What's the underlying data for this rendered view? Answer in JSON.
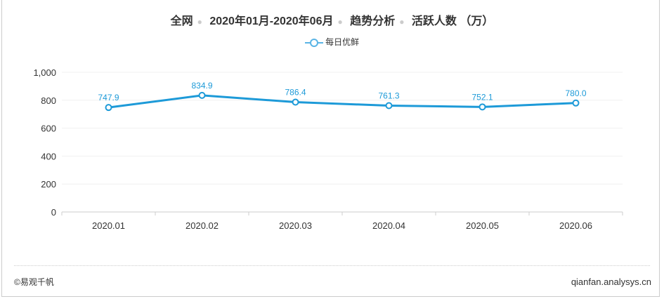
{
  "title_parts": [
    "全网",
    "2020年01月-2020年06月",
    "趋势分析",
    "活跃人数 （万）"
  ],
  "footer": {
    "copyright": "©易观千帆",
    "site": "qianfan.analysys.cn"
  },
  "chart_data": {
    "type": "line",
    "categories": [
      "2020.01",
      "2020.02",
      "2020.03",
      "2020.04",
      "2020.05",
      "2020.06"
    ],
    "series": [
      {
        "name": "每日优鲜",
        "values": [
          747.9,
          834.9,
          786.4,
          761.3,
          752.1,
          780.0
        ],
        "color": "#1d9ad8"
      }
    ],
    "ylim": [
      0,
      1000
    ],
    "yticks": [
      0,
      200,
      400,
      600,
      800,
      1000
    ],
    "ytick_labels": [
      "0",
      "200",
      "400",
      "600",
      "800",
      "1,000"
    ],
    "grid": true,
    "legend": "top-center",
    "data_labels": [
      "747.9",
      "834.9",
      "786.4",
      "761.3",
      "752.1",
      "780.0"
    ]
  }
}
